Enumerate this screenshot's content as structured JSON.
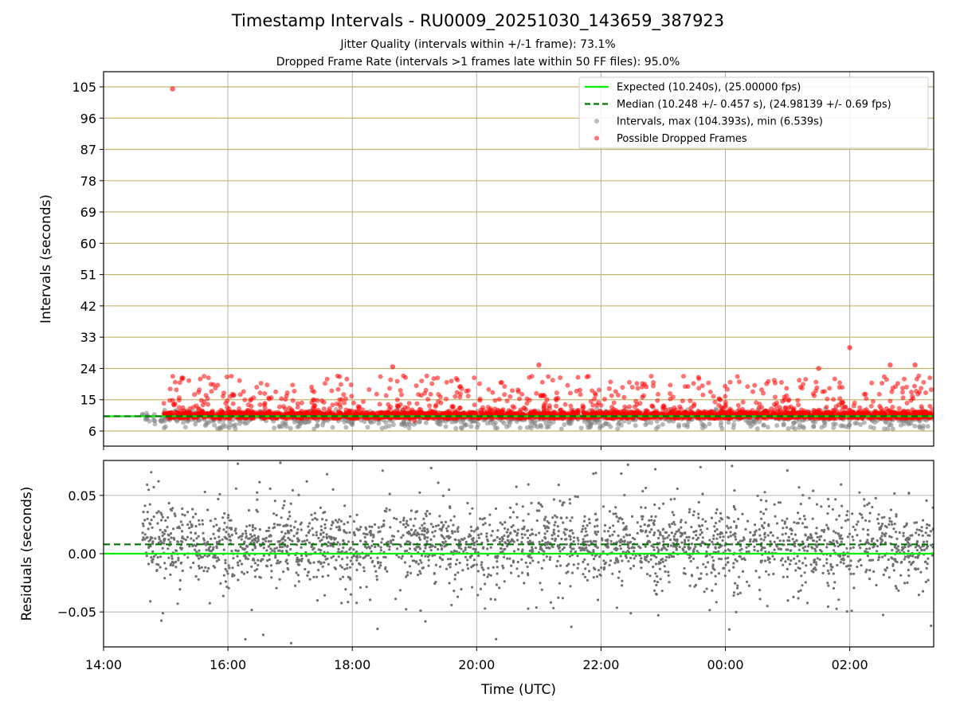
{
  "header": {
    "title": "Timestamp Intervals - RU0009_20251030_143659_387923",
    "subtitle1": "Jitter Quality (intervals within +/-1 frame): 73.1%",
    "subtitle2": "Dropped Frame Rate (intervals >1 frames late within 50 FF files): 95.0%"
  },
  "colors": {
    "expected": "#00ee00",
    "median": "#007700",
    "intervals": "#808080",
    "dropped": "#ff0000",
    "threshold_grid": "#c8b46e",
    "grid": "#b0b0b0"
  },
  "chart_data": [
    {
      "type": "scatter",
      "title": "Intervals",
      "xlabel": "",
      "ylabel": "Intervals (seconds)",
      "xlim_hours": [
        14.0,
        27.35
      ],
      "ylim": [
        1.65,
        109.35
      ],
      "yticks": [
        6,
        15,
        24,
        33,
        42,
        51,
        60,
        69,
        78,
        87,
        96,
        105
      ],
      "ytick_labels": [
        "6",
        "15",
        "24",
        "33",
        "42",
        "51",
        "60",
        "69",
        "78",
        "87",
        "96",
        "105"
      ],
      "xticks_hours": [
        14,
        16,
        18,
        20,
        22,
        24,
        26
      ],
      "expected_line": 10.24,
      "median_line": 10.248,
      "data_start_hour": 14.62,
      "data_end_hour": 27.35,
      "series": [
        {
          "name": "Expected (10.240s), (25.00000 fps)",
          "kind": "line-solid",
          "value": 10.24
        },
        {
          "name": "Median (10.248 +/- 0.457 s), (24.98139 +/- 0.69 fps)",
          "kind": "line-dashed",
          "value": 10.248
        },
        {
          "name": "Intervals, max (104.393s), min (6.539s)",
          "kind": "scatter-gray",
          "max": 104.393,
          "min": 6.539
        },
        {
          "name": "Possible Dropped Frames",
          "kind": "scatter-red",
          "notable_points": [
            [
              15.11,
              104.4
            ],
            [
              19.0,
              9.0
            ],
            [
              21.0,
              25.0
            ],
            [
              26.0,
              30.0
            ],
            [
              18.65,
              24.5
            ],
            [
              26.65,
              25.0
            ],
            [
              27.05,
              25.0
            ],
            [
              25.5,
              24.0
            ]
          ]
        }
      ],
      "legend": {
        "position": "upper-right"
      }
    },
    {
      "type": "scatter",
      "title": "Residuals",
      "xlabel": "Time (UTC)",
      "ylabel": "Residuals (seconds)",
      "xlim_hours": [
        14.0,
        27.35
      ],
      "ylim": [
        -0.08,
        0.08
      ],
      "yticks": [
        -0.05,
        0.0,
        0.05
      ],
      "ytick_labels": [
        "−0.05",
        "0.00",
        "0.05"
      ],
      "xticks_hours": [
        14,
        16,
        18,
        20,
        22,
        24,
        26
      ],
      "xtick_labels": [
        "14:00",
        "16:00",
        "18:00",
        "20:00",
        "22:00",
        "00:00",
        "02:00"
      ],
      "expected_line": 0.0,
      "median_line": 0.008,
      "residual_spread_std": 0.02
    }
  ]
}
